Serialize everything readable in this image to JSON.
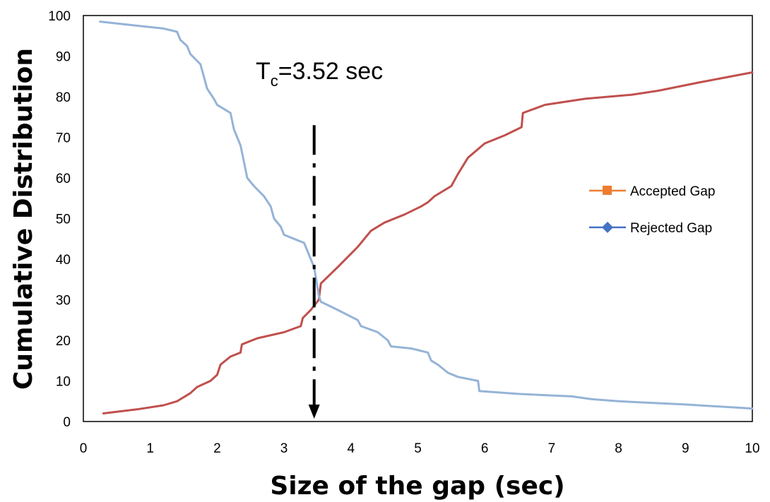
{
  "chart_data": {
    "type": "line",
    "title": "",
    "xlabel": "Size of the gap (sec)",
    "ylabel": "Cumulative Distribution",
    "xlim": [
      0,
      10
    ],
    "ylim": [
      0,
      100
    ],
    "xticks": [
      "0",
      "1",
      "2",
      "3",
      "4",
      "5",
      "6",
      "7",
      "8",
      "9",
      "10"
    ],
    "yticks": [
      "0",
      "10",
      "20",
      "30",
      "40",
      "50",
      "60",
      "70",
      "80",
      "90",
      "100"
    ],
    "grid": false,
    "legend_position": "right",
    "series": [
      {
        "name": "Accepted Gap",
        "legend_color": "#ED7D31",
        "line_color": "#C0504D",
        "points": [
          [
            0.3,
            2
          ],
          [
            0.8,
            3
          ],
          [
            1.2,
            4
          ],
          [
            1.4,
            5
          ],
          [
            1.6,
            7
          ],
          [
            1.7,
            8.5
          ],
          [
            1.9,
            10
          ],
          [
            2.0,
            11.5
          ],
          [
            2.05,
            14
          ],
          [
            2.2,
            16
          ],
          [
            2.35,
            17
          ],
          [
            2.37,
            19
          ],
          [
            2.6,
            20.5
          ],
          [
            3.0,
            22
          ],
          [
            3.25,
            23.5
          ],
          [
            3.28,
            25.5
          ],
          [
            3.4,
            27.5
          ],
          [
            3.52,
            30
          ],
          [
            3.55,
            34
          ],
          [
            3.8,
            38
          ],
          [
            4.1,
            43
          ],
          [
            4.3,
            47
          ],
          [
            4.5,
            49
          ],
          [
            4.8,
            51
          ],
          [
            5.05,
            53
          ],
          [
            5.15,
            54
          ],
          [
            5.25,
            55.5
          ],
          [
            5.5,
            58
          ],
          [
            5.6,
            61
          ],
          [
            5.75,
            65
          ],
          [
            6.0,
            68.5
          ],
          [
            6.3,
            70.5
          ],
          [
            6.55,
            72.5
          ],
          [
            6.57,
            76
          ],
          [
            6.9,
            78
          ],
          [
            7.5,
            79.5
          ],
          [
            8.2,
            80.5
          ],
          [
            8.6,
            81.5
          ],
          [
            9.2,
            83.5
          ],
          [
            10,
            86
          ]
        ]
      },
      {
        "name": "Rejected Gap",
        "legend_color": "#4472C4",
        "line_color": "#95B3D7",
        "points": [
          [
            0.25,
            98.5
          ],
          [
            0.8,
            97.5
          ],
          [
            1.2,
            96.8
          ],
          [
            1.4,
            96
          ],
          [
            1.45,
            94
          ],
          [
            1.55,
            92.5
          ],
          [
            1.6,
            90.5
          ],
          [
            1.75,
            88
          ],
          [
            1.8,
            85
          ],
          [
            1.85,
            82
          ],
          [
            1.95,
            79.5
          ],
          [
            2.0,
            78
          ],
          [
            2.1,
            77
          ],
          [
            2.2,
            76
          ],
          [
            2.25,
            72
          ],
          [
            2.35,
            68
          ],
          [
            2.4,
            64
          ],
          [
            2.45,
            60
          ],
          [
            2.55,
            58
          ],
          [
            2.7,
            55.5
          ],
          [
            2.8,
            53
          ],
          [
            2.85,
            50
          ],
          [
            2.95,
            48
          ],
          [
            3.0,
            46
          ],
          [
            3.15,
            45
          ],
          [
            3.3,
            44
          ],
          [
            3.35,
            42
          ],
          [
            3.45,
            38
          ],
          [
            3.48,
            35
          ],
          [
            3.52,
            31
          ],
          [
            3.55,
            29.5
          ],
          [
            3.8,
            27.5
          ],
          [
            4.1,
            25
          ],
          [
            4.15,
            23.5
          ],
          [
            4.4,
            22
          ],
          [
            4.55,
            20
          ],
          [
            4.6,
            18.5
          ],
          [
            4.9,
            18
          ],
          [
            5.15,
            17
          ],
          [
            5.2,
            15
          ],
          [
            5.3,
            14
          ],
          [
            5.45,
            12
          ],
          [
            5.6,
            11
          ],
          [
            5.9,
            10
          ],
          [
            5.92,
            7.5
          ],
          [
            6.5,
            6.8
          ],
          [
            7.3,
            6.2
          ],
          [
            7.6,
            5.5
          ],
          [
            8.0,
            5
          ],
          [
            9.0,
            4.2
          ],
          [
            10,
            3.2
          ]
        ]
      }
    ],
    "annotation": {
      "text_main": "T",
      "text_sub": "c",
      "text_rest": "=3.52 sec",
      "x_marker": 3.45,
      "y_top": 73
    }
  }
}
